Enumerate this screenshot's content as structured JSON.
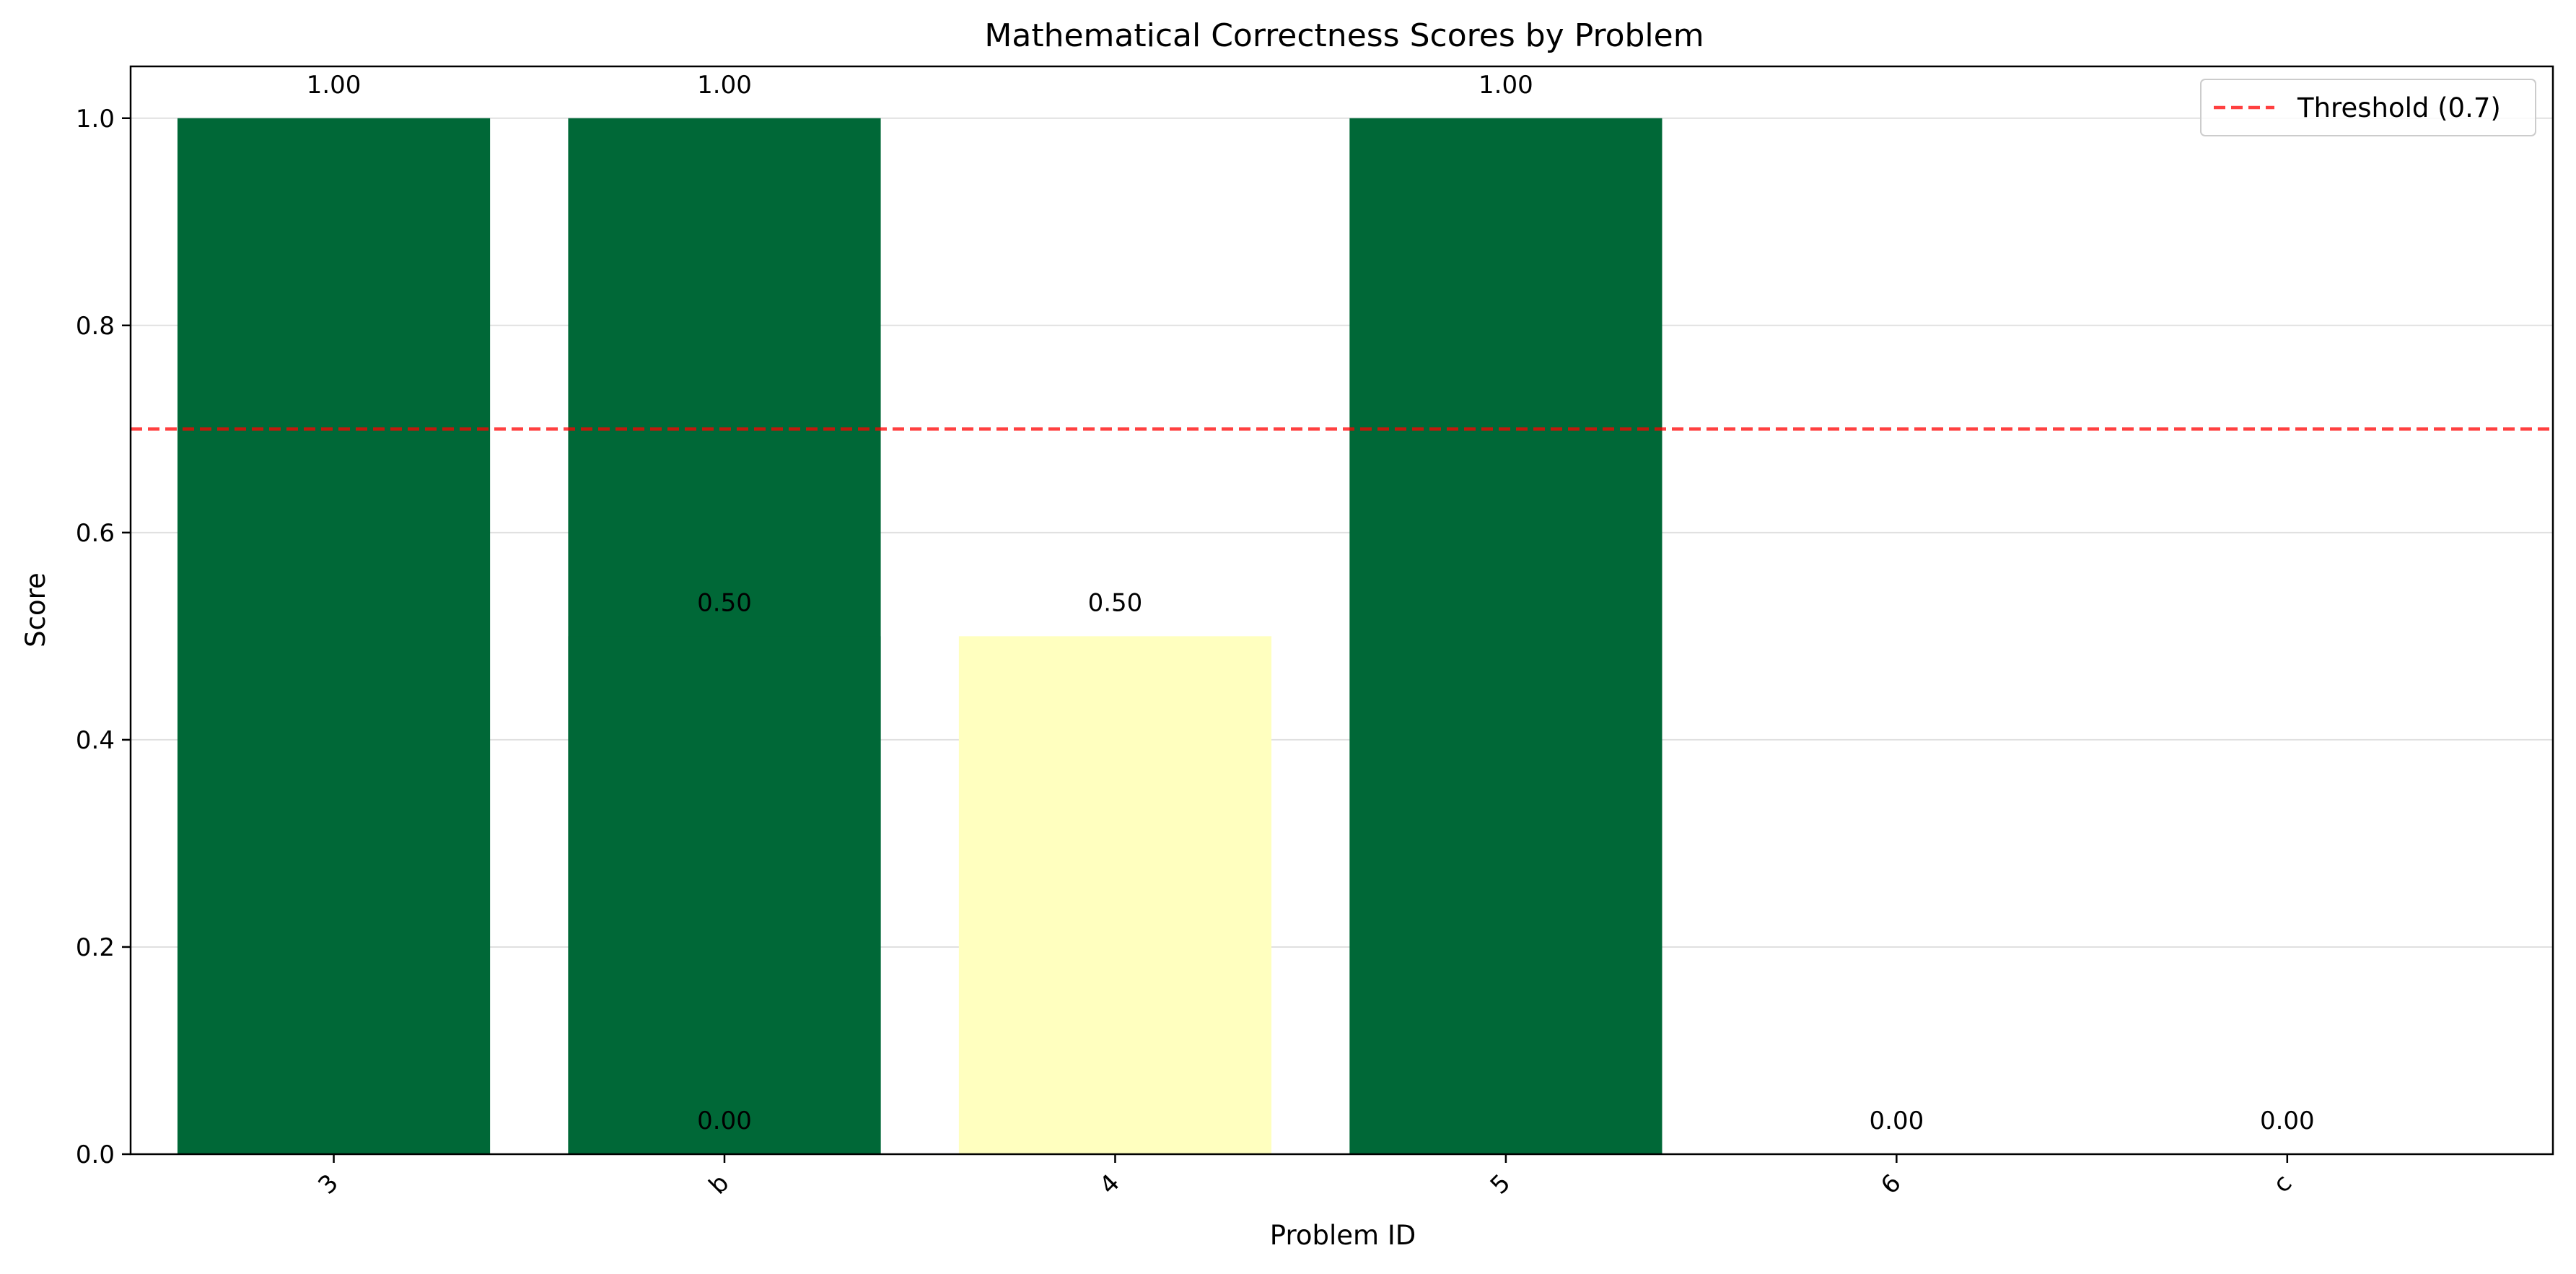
{
  "chart_data": {
    "type": "bar",
    "title": "Mathematical Correctness Scores by Problem",
    "xlabel": "Problem ID",
    "ylabel": "Score",
    "ylim": [
      0,
      1.05
    ],
    "yticks": [
      "0.0",
      "0.2",
      "0.4",
      "0.6",
      "0.8",
      "1.0"
    ],
    "grid": "y",
    "legend_placement": "top-right",
    "bars": [
      {
        "category": "3",
        "value": 1.0,
        "label": "1.00",
        "color": "#006837"
      },
      {
        "category": "b",
        "value": 1.0,
        "label": "1.00",
        "color": "#006837"
      },
      {
        "category": "b",
        "value": 0.5,
        "label": "0.50",
        "color": "#006837"
      },
      {
        "category": "b",
        "value": 0.0,
        "label": "0.00",
        "color": "#006837"
      },
      {
        "category": "4",
        "value": 0.5,
        "label": "0.50",
        "color": "#ffffbf"
      },
      {
        "category": "5",
        "value": 1.0,
        "label": "1.00",
        "color": "#006837"
      },
      {
        "category": "6",
        "value": 0.0,
        "label": "0.00",
        "color": "#a50026"
      },
      {
        "category": "c",
        "value": 0.0,
        "label": "0.00",
        "color": "#a50026"
      }
    ],
    "categories": [
      "3",
      "b",
      "4",
      "5",
      "6",
      "c"
    ],
    "threshold": {
      "value": 0.7,
      "label": "Threshold (0.7)",
      "color": "#ff0000",
      "style": "dashed"
    }
  }
}
